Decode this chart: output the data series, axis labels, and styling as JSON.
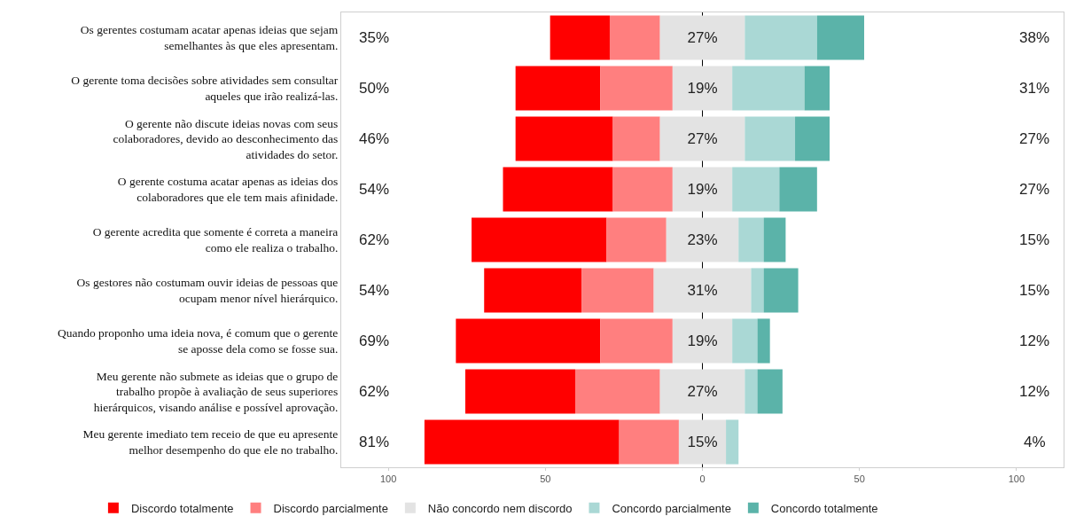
{
  "chart_data": {
    "type": "bar",
    "orientation": "horizontal",
    "categories": [
      "Os gerentes costumam acatar apenas ideias que sejam semelhantes às que eles apresentam.",
      "O gerente toma decisões sobre atividades sem consultar aqueles que irão realizá-las.",
      "O gerente não discute ideias novas com seus colaboradores, devido ao desconhecimento das atividades do setor.",
      "O gerente costuma acatar apenas as ideias dos colaboradores que ele tem mais afinidade.",
      "O gerente acredita que somente é correta a maneira como ele realiza o trabalho.",
      "Os gestores não costumam ouvir ideias de pessoas que ocupam menor nível hierárquico.",
      "Quando proponho uma ideia nova, é comum que o gerente se aposse dela como se fosse sua.",
      "Meu gerente não submete as ideias que o grupo de trabalho propõe à avaliação de seus superiores hierárquicos, visando análise e possível aprovação.",
      "Meu gerente imediato tem receio de que eu apresente melhor desempenho do que ele no trabalho."
    ],
    "series": [
      {
        "name": "Discordo totalmente",
        "color": "#ff0000",
        "values": [
          19,
          27,
          31,
          35,
          43,
          31,
          46,
          35,
          62
        ],
        "base": [
          -48.5,
          -59.5,
          -59.5,
          -63.5,
          -73.5,
          -69.5,
          -78.5,
          -75.5,
          -88.5
        ]
      },
      {
        "name": "Discordo parcialmente",
        "color": "#ff7f7f",
        "values": [
          16,
          23,
          15,
          19,
          19,
          23,
          23,
          27,
          19
        ],
        "base": [
          -29.5,
          -32.5,
          -28.5,
          -28.5,
          -30.5,
          -38.5,
          -32.5,
          -40.5,
          -26.5
        ]
      },
      {
        "name": "Não concordo nem discordo",
        "color": "#e3e3e3",
        "values": [
          27,
          19,
          27,
          19,
          23,
          31,
          19,
          27,
          15
        ],
        "base": [
          -13.5,
          -9.5,
          -13.5,
          -9.5,
          -11.5,
          -15.5,
          -9.5,
          -13.5,
          -7.5
        ],
        "value_labels": [
          "27%",
          "19%",
          "27%",
          "19%",
          "23%",
          "31%",
          "19%",
          "27%",
          "15%"
        ]
      },
      {
        "name": "Concordo parcialmente",
        "color": "#aad8d5",
        "values": [
          23,
          23,
          16,
          15,
          8,
          4,
          8,
          4,
          4
        ],
        "base": [
          13.5,
          9.5,
          13.5,
          9.5,
          11.5,
          15.5,
          9.5,
          13.5,
          7.5
        ]
      },
      {
        "name": "Concordo totalmente",
        "color": "#5bb3a9",
        "values": [
          15,
          8,
          11,
          12,
          7,
          11,
          4,
          8,
          null
        ],
        "base": [
          36.5,
          32.5,
          29.5,
          24.5,
          19.5,
          19.5,
          17.5,
          17.5,
          null
        ]
      }
    ],
    "xlim": [
      -115,
      115
    ],
    "xticks": [
      {
        "value": -100,
        "label": "100"
      },
      {
        "value": -50,
        "label": "50"
      },
      0,
      50,
      100
    ],
    "ref_lines": [
      {
        "axis": "x",
        "value": 0,
        "color": "#000000"
      }
    ],
    "annotations": [
      "35%",
      "38%",
      "50%",
      "31%",
      "46%",
      "27%",
      "54%",
      "27%",
      "62%",
      "15%",
      "54%",
      "15%",
      "69%",
      "12%",
      "62%",
      "12%",
      "81%",
      "4%"
    ],
    "legend": "bottom",
    "grid": false
  }
}
